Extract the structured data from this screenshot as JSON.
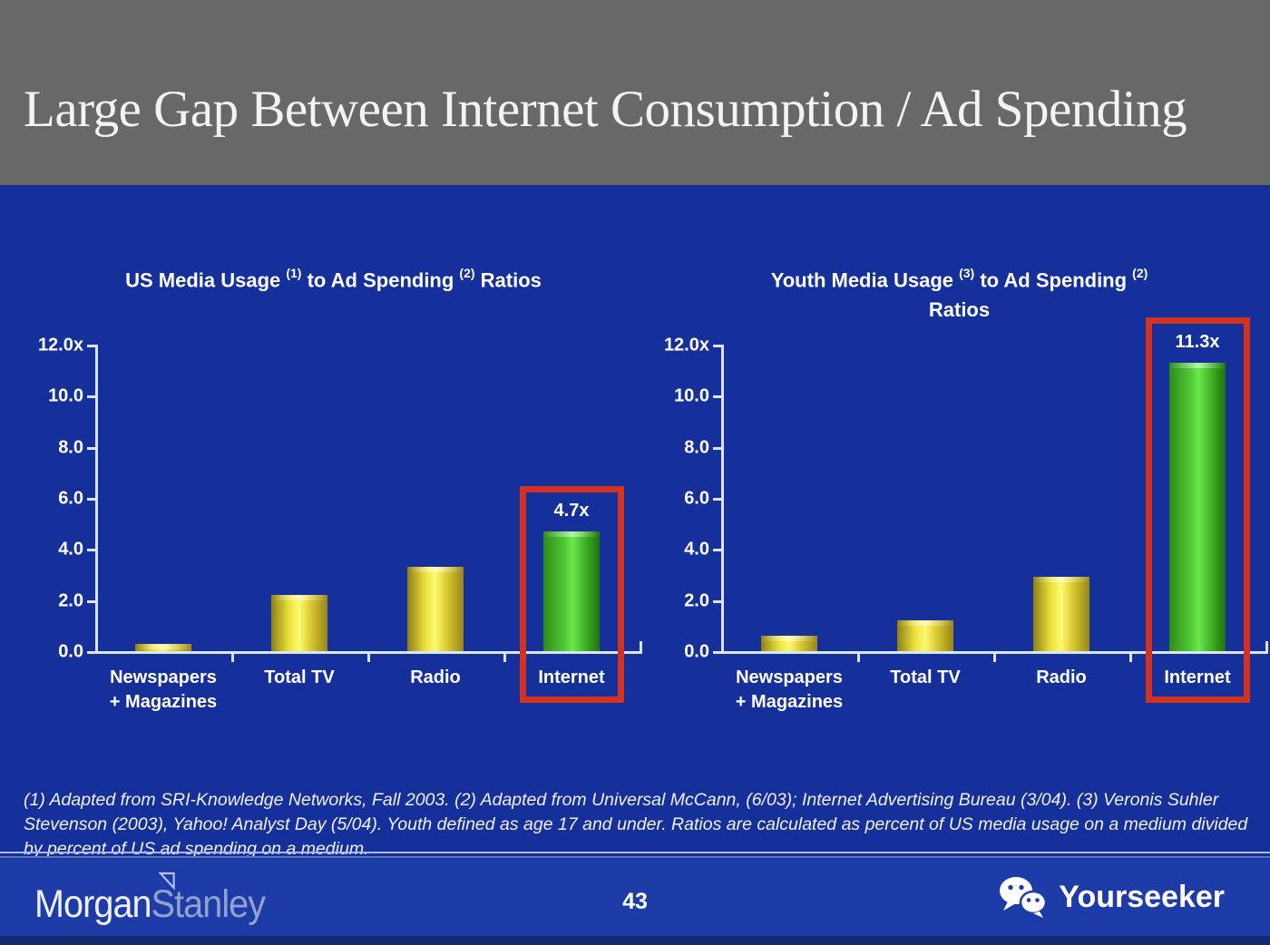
{
  "slide": {
    "title": "Large Gap Between Internet Consumption / Ad Spending",
    "footnote": "(1) Adapted from SRI-Knowledge Networks, Fall 2003.  (2) Adapted from Universal McCann, (6/03); Internet Advertising Bureau (3/04). (3) Veronis Suhler Stevenson (2003), Yahoo! Analyst Day (5/04).  Youth defined as age 17 and under.  Ratios are calculated as percent of US media usage on a medium divided by percent of US ad spending on a medium."
  },
  "footer": {
    "page_number": "43",
    "brand_part1": "Morgan",
    "brand_part2": "Stanley",
    "watermark_label": "Yourseeker"
  },
  "colors": {
    "header_bg": "#686868",
    "slide_bg": "#15309b",
    "footer_bg": "#1e3ca8",
    "bottom_strip": "#15296f",
    "axis": "#dce4f8",
    "bar_yellow": "#efe53e",
    "bar_green": "#46c72f",
    "highlight_box_red": "#d2321f",
    "title_text": "#f3f3f3",
    "chart_text": "#ffffff"
  },
  "chart_data": [
    {
      "type": "bar",
      "title": "US Media Usage (1) to Ad Spending (2) Ratios",
      "title_lines": [
        [
          {
            "t": "US Media Usage "
          },
          {
            "sup": "(1)"
          },
          {
            "t": " to Ad Spending "
          },
          {
            "sup": "(2)"
          },
          {
            "t": " Ratios"
          }
        ]
      ],
      "categories": [
        [
          "Newspapers",
          "+ Magazines"
        ],
        [
          "Total TV"
        ],
        [
          "Radio"
        ],
        [
          "Internet"
        ]
      ],
      "values": [
        0.3,
        2.2,
        3.3,
        4.7
      ],
      "bar_labels": [
        "",
        "",
        "",
        "4.7x"
      ],
      "highlight_index": 3,
      "y_ticks": [
        {
          "label": "12.0x",
          "value": 12
        },
        {
          "label": "10.0",
          "value": 10
        },
        {
          "label": "8.0",
          "value": 8
        },
        {
          "label": "6.0",
          "value": 6
        },
        {
          "label": "4.0",
          "value": 4
        },
        {
          "label": "2.0",
          "value": 2
        },
        {
          "label": "0.0",
          "value": 0
        }
      ],
      "ylim": [
        0,
        12
      ],
      "xlabel": "",
      "ylabel": "",
      "grid": false,
      "legend": null
    },
    {
      "type": "bar",
      "title": "Youth Media Usage (3) to Ad Spending (2) Ratios",
      "title_lines": [
        [
          {
            "t": "Youth Media Usage "
          },
          {
            "sup": "(3)"
          },
          {
            "t": " to Ad Spending "
          },
          {
            "sup": "(2)"
          }
        ],
        [
          {
            "t": "Ratios"
          }
        ]
      ],
      "categories": [
        [
          "Newspapers",
          "+ Magazines"
        ],
        [
          "Total TV"
        ],
        [
          "Radio"
        ],
        [
          "Internet"
        ]
      ],
      "values": [
        0.6,
        1.2,
        2.9,
        11.3
      ],
      "bar_labels": [
        "",
        "",
        "",
        "11.3x"
      ],
      "highlight_index": 3,
      "y_ticks": [
        {
          "label": "12.0x",
          "value": 12
        },
        {
          "label": "10.0",
          "value": 10
        },
        {
          "label": "8.0",
          "value": 8
        },
        {
          "label": "6.0",
          "value": 6
        },
        {
          "label": "4.0",
          "value": 4
        },
        {
          "label": "2.0",
          "value": 2
        },
        {
          "label": "0.0",
          "value": 0
        }
      ],
      "ylim": [
        0,
        12
      ],
      "xlabel": "",
      "ylabel": "",
      "grid": false,
      "legend": null
    }
  ]
}
